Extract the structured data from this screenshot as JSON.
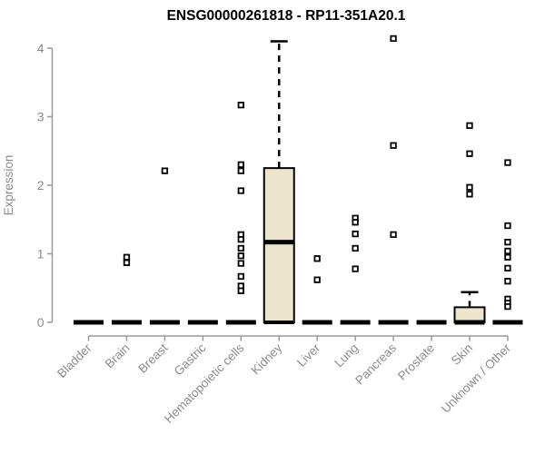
{
  "chart_data": {
    "type": "boxplot",
    "title": "ENSG00000261818 - RP11-351A20.1",
    "ylabel": "Expression",
    "xlabel": "",
    "ylim": [
      0,
      4
    ],
    "yticks": [
      0,
      1,
      2,
      3,
      4
    ],
    "grid": false,
    "legend": "none",
    "categories": [
      "Bladder",
      "Brain",
      "Breast",
      "Gastric",
      "Hematopoietic cells",
      "Kidney",
      "Liver",
      "Lung",
      "Pancreas",
      "Prostate",
      "Skin",
      "Unknown / Other"
    ],
    "boxes": [
      {
        "category": "Bladder",
        "min": 0,
        "q1": 0,
        "median": 0,
        "q3": 0,
        "max": 0,
        "outliers": []
      },
      {
        "category": "Brain",
        "min": 0,
        "q1": 0,
        "median": 0,
        "q3": 0,
        "max": 0,
        "outliers": [
          0.95,
          0.87
        ]
      },
      {
        "category": "Breast",
        "min": 0,
        "q1": 0,
        "median": 0,
        "q3": 0,
        "max": 0,
        "outliers": [
          2.21
        ]
      },
      {
        "category": "Gastric",
        "min": 0,
        "q1": 0,
        "median": 0,
        "q3": 0,
        "max": 0,
        "outliers": []
      },
      {
        "category": "Hematopoietic cells",
        "min": 0,
        "q1": 0,
        "median": 0,
        "q3": 0,
        "max": 0,
        "outliers": [
          3.17,
          2.3,
          2.21,
          1.92,
          1.28,
          1.21,
          1.08,
          0.97,
          0.86,
          0.67,
          0.53,
          0.46
        ]
      },
      {
        "category": "Kidney",
        "min": 0,
        "q1": 0,
        "median": 1.17,
        "q3": 2.25,
        "max": 4.1,
        "outliers": []
      },
      {
        "category": "Liver",
        "min": 0,
        "q1": 0,
        "median": 0,
        "q3": 0,
        "max": 0,
        "outliers": [
          0.93,
          0.62
        ]
      },
      {
        "category": "Lung",
        "min": 0,
        "q1": 0,
        "median": 0,
        "q3": 0,
        "max": 0,
        "outliers": [
          1.52,
          1.46,
          1.29,
          1.08,
          0.78
        ]
      },
      {
        "category": "Pancreas",
        "min": 0,
        "q1": 0,
        "median": 0,
        "q3": 0,
        "max": 0,
        "outliers": [
          4.14,
          2.58,
          1.28
        ]
      },
      {
        "category": "Prostate",
        "min": 0,
        "q1": 0,
        "median": 0,
        "q3": 0,
        "max": 0,
        "outliers": []
      },
      {
        "category": "Skin",
        "min": 0,
        "q1": 0,
        "median": 0,
        "q3": 0.22,
        "max": 0.44,
        "outliers": [
          2.87,
          2.46,
          1.97,
          1.87
        ]
      },
      {
        "category": "Unknown / Other",
        "min": 0,
        "q1": 0,
        "median": 0,
        "q3": 0,
        "max": 0,
        "outliers": [
          2.33,
          1.41,
          1.17,
          1.04,
          0.95,
          0.79,
          0.6,
          0.34,
          0.28,
          0.23
        ]
      }
    ],
    "colors": {
      "box_fill": "#EBE5CC",
      "box_border": "#000000",
      "median": "#000000",
      "whisker": "#000000",
      "outlier": "#000000",
      "axis": "#9A9A9A",
      "tick_label": "#8C8C8C",
      "title": "#000000"
    }
  }
}
